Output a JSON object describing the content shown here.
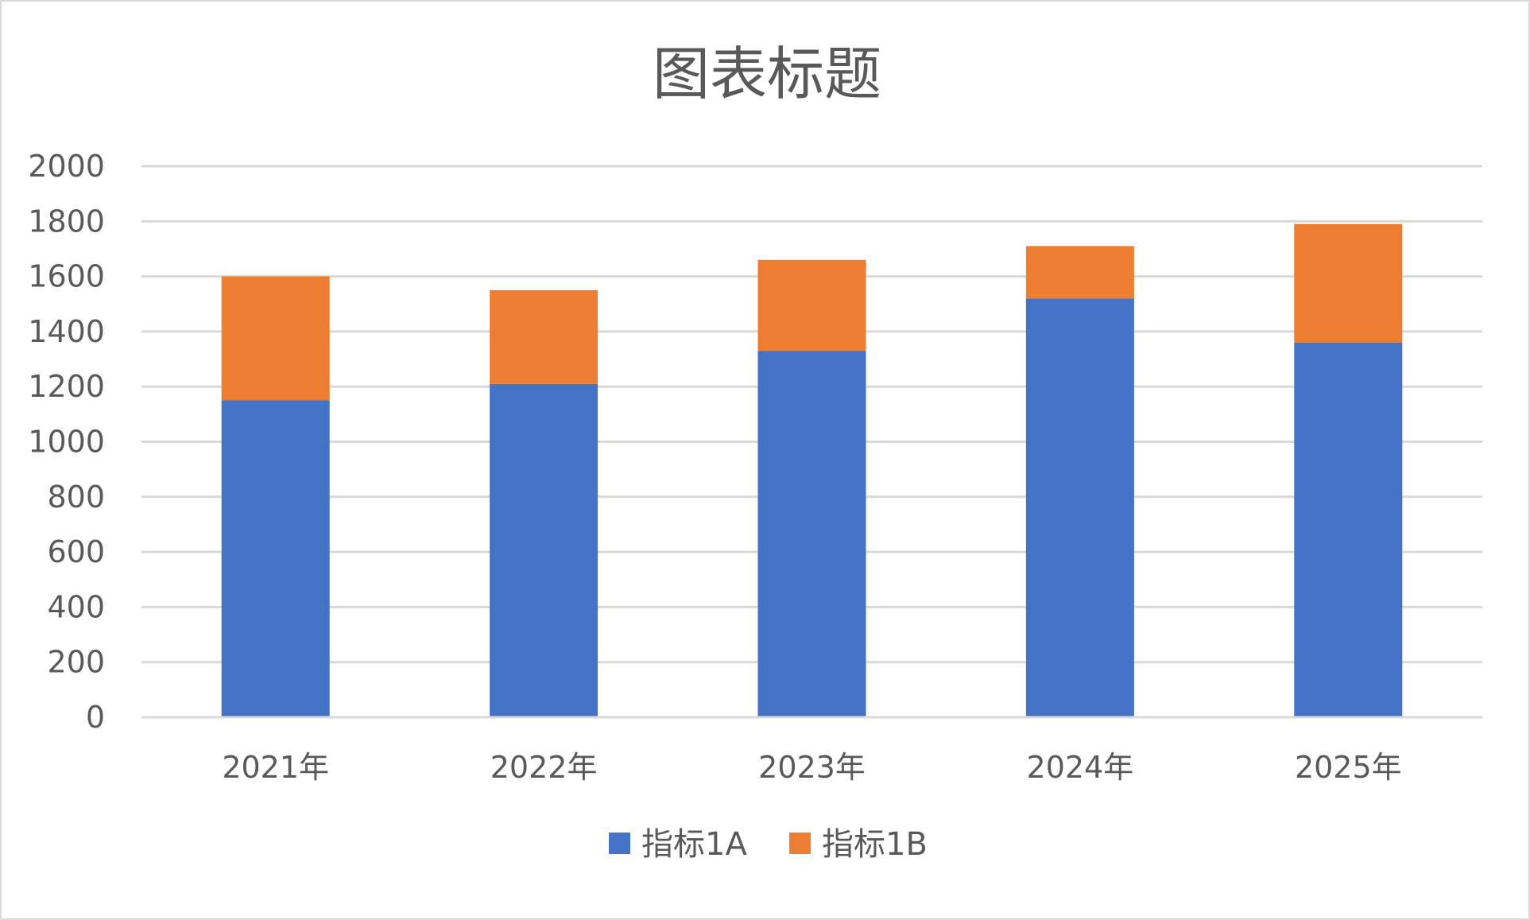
{
  "chart_data": {
    "type": "bar",
    "stacked": true,
    "title": "图表标题",
    "xlabel": "",
    "ylabel": "",
    "categories": [
      "2021年",
      "2022年",
      "2023年",
      "2024年",
      "2025年"
    ],
    "series": [
      {
        "name": "指标1A",
        "color": "#4472c4",
        "values": [
          1150,
          1210,
          1330,
          1520,
          1360
        ]
      },
      {
        "name": "指标1B",
        "color": "#ed7d31",
        "values": [
          450,
          340,
          330,
          190,
          430
        ]
      }
    ],
    "ylim": [
      0,
      2000
    ],
    "yticks": [
      "0",
      "200",
      "400",
      "600",
      "800",
      "1000",
      "1200",
      "1400",
      "1600",
      "1800",
      "2000"
    ],
    "grid": true,
    "legend_position": "bottom"
  }
}
